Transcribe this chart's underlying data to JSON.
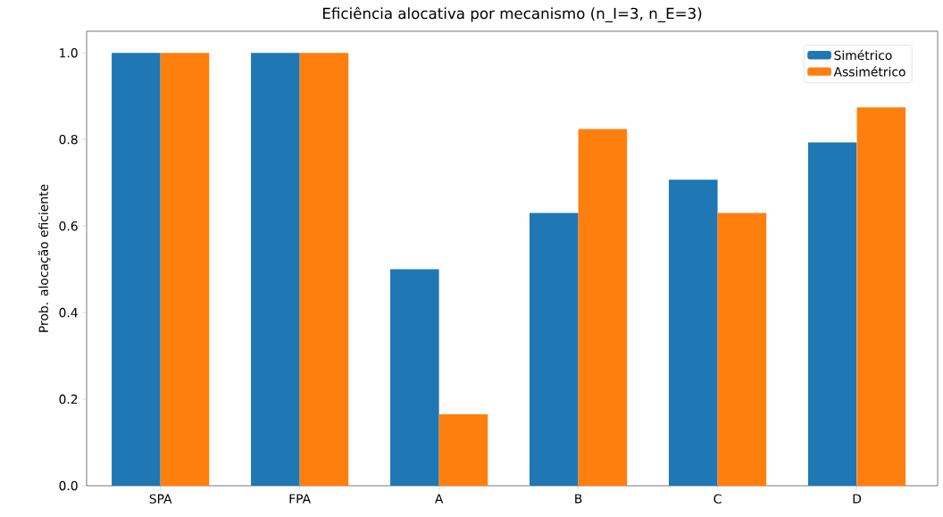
{
  "chart_data": {
    "type": "bar",
    "title": "Eficiência alocativa por mecanismo (n_I=3, n_E=3)",
    "ylabel": "Prob. alocação eficiente",
    "categories": [
      "SPA",
      "FPA",
      "A",
      "B",
      "C",
      "D"
    ],
    "series": [
      {
        "name": "Simétrico",
        "color": "#1f77b4",
        "values": [
          1.0,
          1.0,
          0.5,
          0.63,
          0.707,
          0.793
        ]
      },
      {
        "name": "Assimétrico",
        "color": "#ff7f0e",
        "values": [
          1.0,
          1.0,
          0.165,
          0.824,
          0.63,
          0.874
        ]
      }
    ],
    "ylim": [
      0,
      1.05
    ],
    "yticks": [
      {
        "value": 0,
        "label": "0.0"
      },
      {
        "value": 0.2,
        "label": "0.2"
      },
      {
        "value": 0.4,
        "label": "0.4"
      },
      {
        "value": 0.6,
        "label": "0.6"
      },
      {
        "value": 0.8,
        "label": "0.8"
      },
      {
        "value": 1.0,
        "label": "1.0"
      }
    ],
    "grid": false,
    "legend": "top right"
  }
}
